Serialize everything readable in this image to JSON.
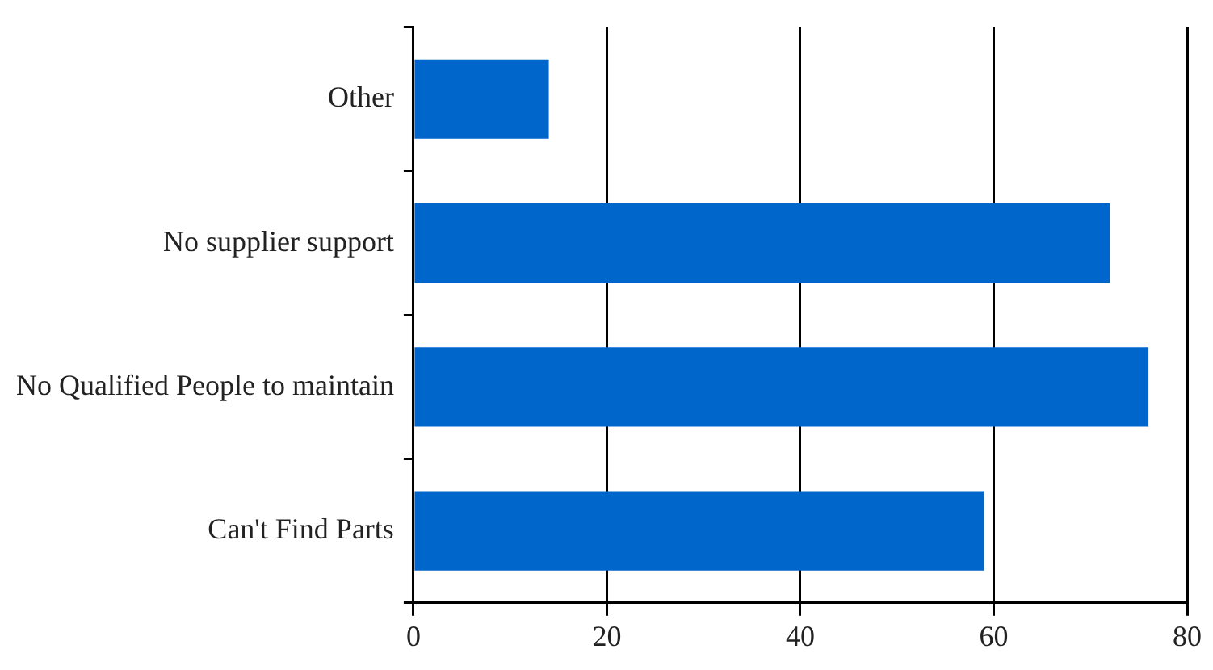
{
  "chart_data": {
    "type": "bar",
    "orientation": "horizontal",
    "categories": [
      "Other",
      "No supplier support",
      "No Qualified People to maintain",
      "Can't Find Parts"
    ],
    "values": [
      14,
      72,
      76,
      59
    ],
    "color": "#0066cc",
    "xlim": [
      0,
      80
    ],
    "xticks": [
      0,
      20,
      40,
      60,
      80
    ],
    "grid": "x",
    "legend": false
  }
}
